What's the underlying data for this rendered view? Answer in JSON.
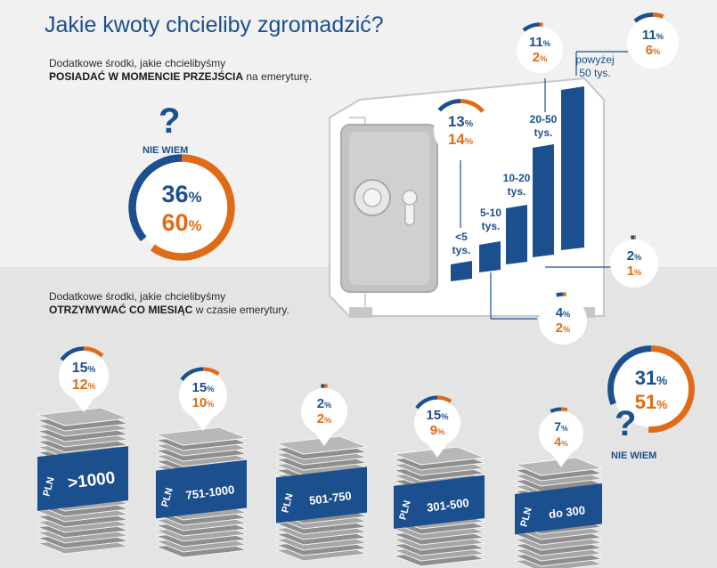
{
  "title": "Jakie kwoty chcieliby zgromadzić?",
  "section1": {
    "line1": "Dodatkowe środki, jakie chcielibyśmy",
    "bold": "POSIADAĆ W MOMENCIE PRZEJŚCIA",
    "rest": "na emeryturę."
  },
  "section2": {
    "line1": "Dodatkowe środki, jakie chcielibyśmy",
    "bold": "OTRZYMYWAĆ CO MIESIĄC",
    "rest": "w czasie emerytury."
  },
  "unknown_label": "NIE WIEM",
  "question_mark": "?",
  "pln_label": "PLN",
  "percent_sign": "%",
  "colors": {
    "blue": "#1b4f8e",
    "orange": "#e06b16"
  },
  "chart_data": [
    {
      "type": "bar",
      "title": "Dodatkowe środki, jakie chcielibyśmy POSIADAĆ W MOMENCIE PRZEJŚCIA na emeryturę.",
      "categories": [
        "<5 tys.",
        "5-10 tys.",
        "10-20 tys.",
        "20-50 tys.",
        "powyżej 50 tys."
      ],
      "series": [
        {
          "name": "blue",
          "values": [
            13,
            4,
            2,
            11,
            11
          ]
        },
        {
          "name": "orange",
          "values": [
            14,
            2,
            1,
            2,
            6
          ]
        }
      ],
      "unknown": {
        "label": "NIE WIEM",
        "blue": 36,
        "orange": 60
      }
    },
    {
      "type": "bar",
      "title": "Dodatkowe środki, jakie chcielibyśmy OTRZYMYWAĆ CO MIESIĄC w czasie emerytury.",
      "categories": [
        ">1000",
        "751-1000",
        "501-750",
        "301-500",
        "do 300"
      ],
      "series": [
        {
          "name": "blue",
          "values": [
            15,
            15,
            2,
            15,
            7
          ]
        },
        {
          "name": "orange",
          "values": [
            12,
            10,
            2,
            9,
            4
          ]
        }
      ],
      "unknown": {
        "label": "NIE WIEM",
        "blue": 31,
        "orange": 51
      }
    }
  ]
}
